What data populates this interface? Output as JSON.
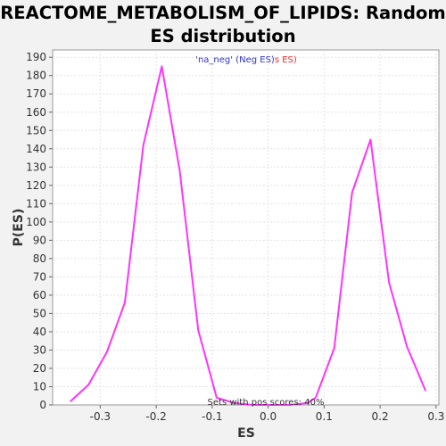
{
  "chart_data": {
    "type": "line",
    "title_line1": "REACTOME_METABOLISM_OF_LIPIDS: Random",
    "title_line2": "ES distribution",
    "subtitle": {
      "part1": "'na_neg' (Neg ES)",
      "part2": "s ES)",
      "part1_color": "#3333cc",
      "part2_color": "#e03030",
      "marker_text": "ES",
      "marker_color": "#3333cc"
    },
    "annotation": "Sets with pos scores: 40%",
    "xlabel": "ES",
    "ylabel": "P(ES)",
    "xlim": [
      -0.385,
      0.305
    ],
    "ylim": [
      0,
      194
    ],
    "x_ticks": [
      "-0.3",
      "-0.2",
      "-0.1",
      "0.0",
      "0.1",
      "0.2",
      "0.3"
    ],
    "x_tick_values": [
      -0.3,
      -0.2,
      -0.1,
      0.0,
      0.1,
      0.2,
      0.3
    ],
    "y_ticks": [
      "0",
      "10",
      "20",
      "30",
      "40",
      "50",
      "60",
      "70",
      "80",
      "90",
      "100",
      "110",
      "120",
      "130",
      "140",
      "150",
      "160",
      "170",
      "180",
      "190"
    ],
    "y_tick_values": [
      0,
      10,
      20,
      30,
      40,
      50,
      60,
      70,
      80,
      90,
      100,
      110,
      120,
      130,
      140,
      150,
      160,
      170,
      180,
      190
    ],
    "grid": true,
    "series": [
      {
        "color": "#ff33ff",
        "x": [
          -0.353,
          -0.321,
          -0.288,
          -0.256,
          -0.223,
          -0.19,
          -0.158,
          -0.125,
          -0.092,
          -0.06,
          -0.027,
          0.005,
          0.038,
          0.07,
          0.085,
          0.118,
          0.15,
          0.183,
          0.216,
          0.248,
          0.281
        ],
        "y": [
          2,
          11,
          29,
          56,
          142,
          185,
          128,
          41,
          4,
          1,
          0,
          0,
          0,
          1,
          4,
          31,
          116,
          145,
          67,
          32,
          8
        ]
      }
    ]
  }
}
